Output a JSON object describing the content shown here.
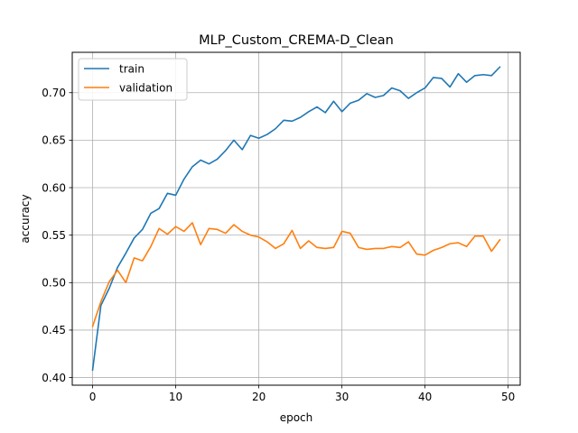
{
  "chart_data": {
    "type": "line",
    "title": "MLP_Custom_CREMA-D_Clean",
    "xlabel": "epoch",
    "ylabel": "accuracy",
    "xlim": [
      -2.45,
      51.45
    ],
    "ylim": [
      0.392,
      0.7425
    ],
    "xticks": [
      0,
      10,
      20,
      30,
      40,
      50
    ],
    "xtick_labels": [
      "0",
      "10",
      "20",
      "30",
      "40",
      "50"
    ],
    "yticks": [
      0.4,
      0.45,
      0.5,
      0.55,
      0.6,
      0.65,
      0.7
    ],
    "ytick_labels": [
      "0.40",
      "0.45",
      "0.50",
      "0.55",
      "0.60",
      "0.65",
      "0.70"
    ],
    "grid": true,
    "legend_position": "top-left",
    "x": [
      0,
      1,
      2,
      3,
      4,
      5,
      6,
      7,
      8,
      9,
      10,
      11,
      12,
      13,
      14,
      15,
      16,
      17,
      18,
      19,
      20,
      21,
      22,
      23,
      24,
      25,
      26,
      27,
      28,
      29,
      30,
      31,
      32,
      33,
      34,
      35,
      36,
      37,
      38,
      39,
      40,
      41,
      42,
      43,
      44,
      45,
      46,
      47,
      48,
      49
    ],
    "series": [
      {
        "name": "train",
        "color": "#1f77b4",
        "values": [
          0.408,
          0.476,
          0.494,
          0.516,
          0.531,
          0.547,
          0.556,
          0.573,
          0.578,
          0.594,
          0.592,
          0.609,
          0.622,
          0.629,
          0.625,
          0.63,
          0.639,
          0.65,
          0.64,
          0.655,
          0.652,
          0.656,
          0.662,
          0.671,
          0.67,
          0.674,
          0.68,
          0.685,
          0.679,
          0.691,
          0.68,
          0.689,
          0.692,
          0.699,
          0.695,
          0.697,
          0.705,
          0.702,
          0.694,
          0.7,
          0.705,
          0.716,
          0.715,
          0.706,
          0.72,
          0.711,
          0.718,
          0.719,
          0.718,
          0.727
        ]
      },
      {
        "name": "validation",
        "color": "#ff7f0e",
        "values": [
          0.454,
          0.48,
          0.501,
          0.513,
          0.5,
          0.526,
          0.523,
          0.538,
          0.557,
          0.551,
          0.559,
          0.554,
          0.563,
          0.54,
          0.557,
          0.556,
          0.552,
          0.561,
          0.554,
          0.55,
          0.548,
          0.543,
          0.536,
          0.541,
          0.555,
          0.536,
          0.544,
          0.537,
          0.536,
          0.537,
          0.554,
          0.552,
          0.537,
          0.535,
          0.536,
          0.536,
          0.538,
          0.537,
          0.543,
          0.53,
          0.529,
          0.534,
          0.537,
          0.541,
          0.542,
          0.538,
          0.549,
          0.549,
          0.533,
          0.545
        ]
      }
    ]
  }
}
